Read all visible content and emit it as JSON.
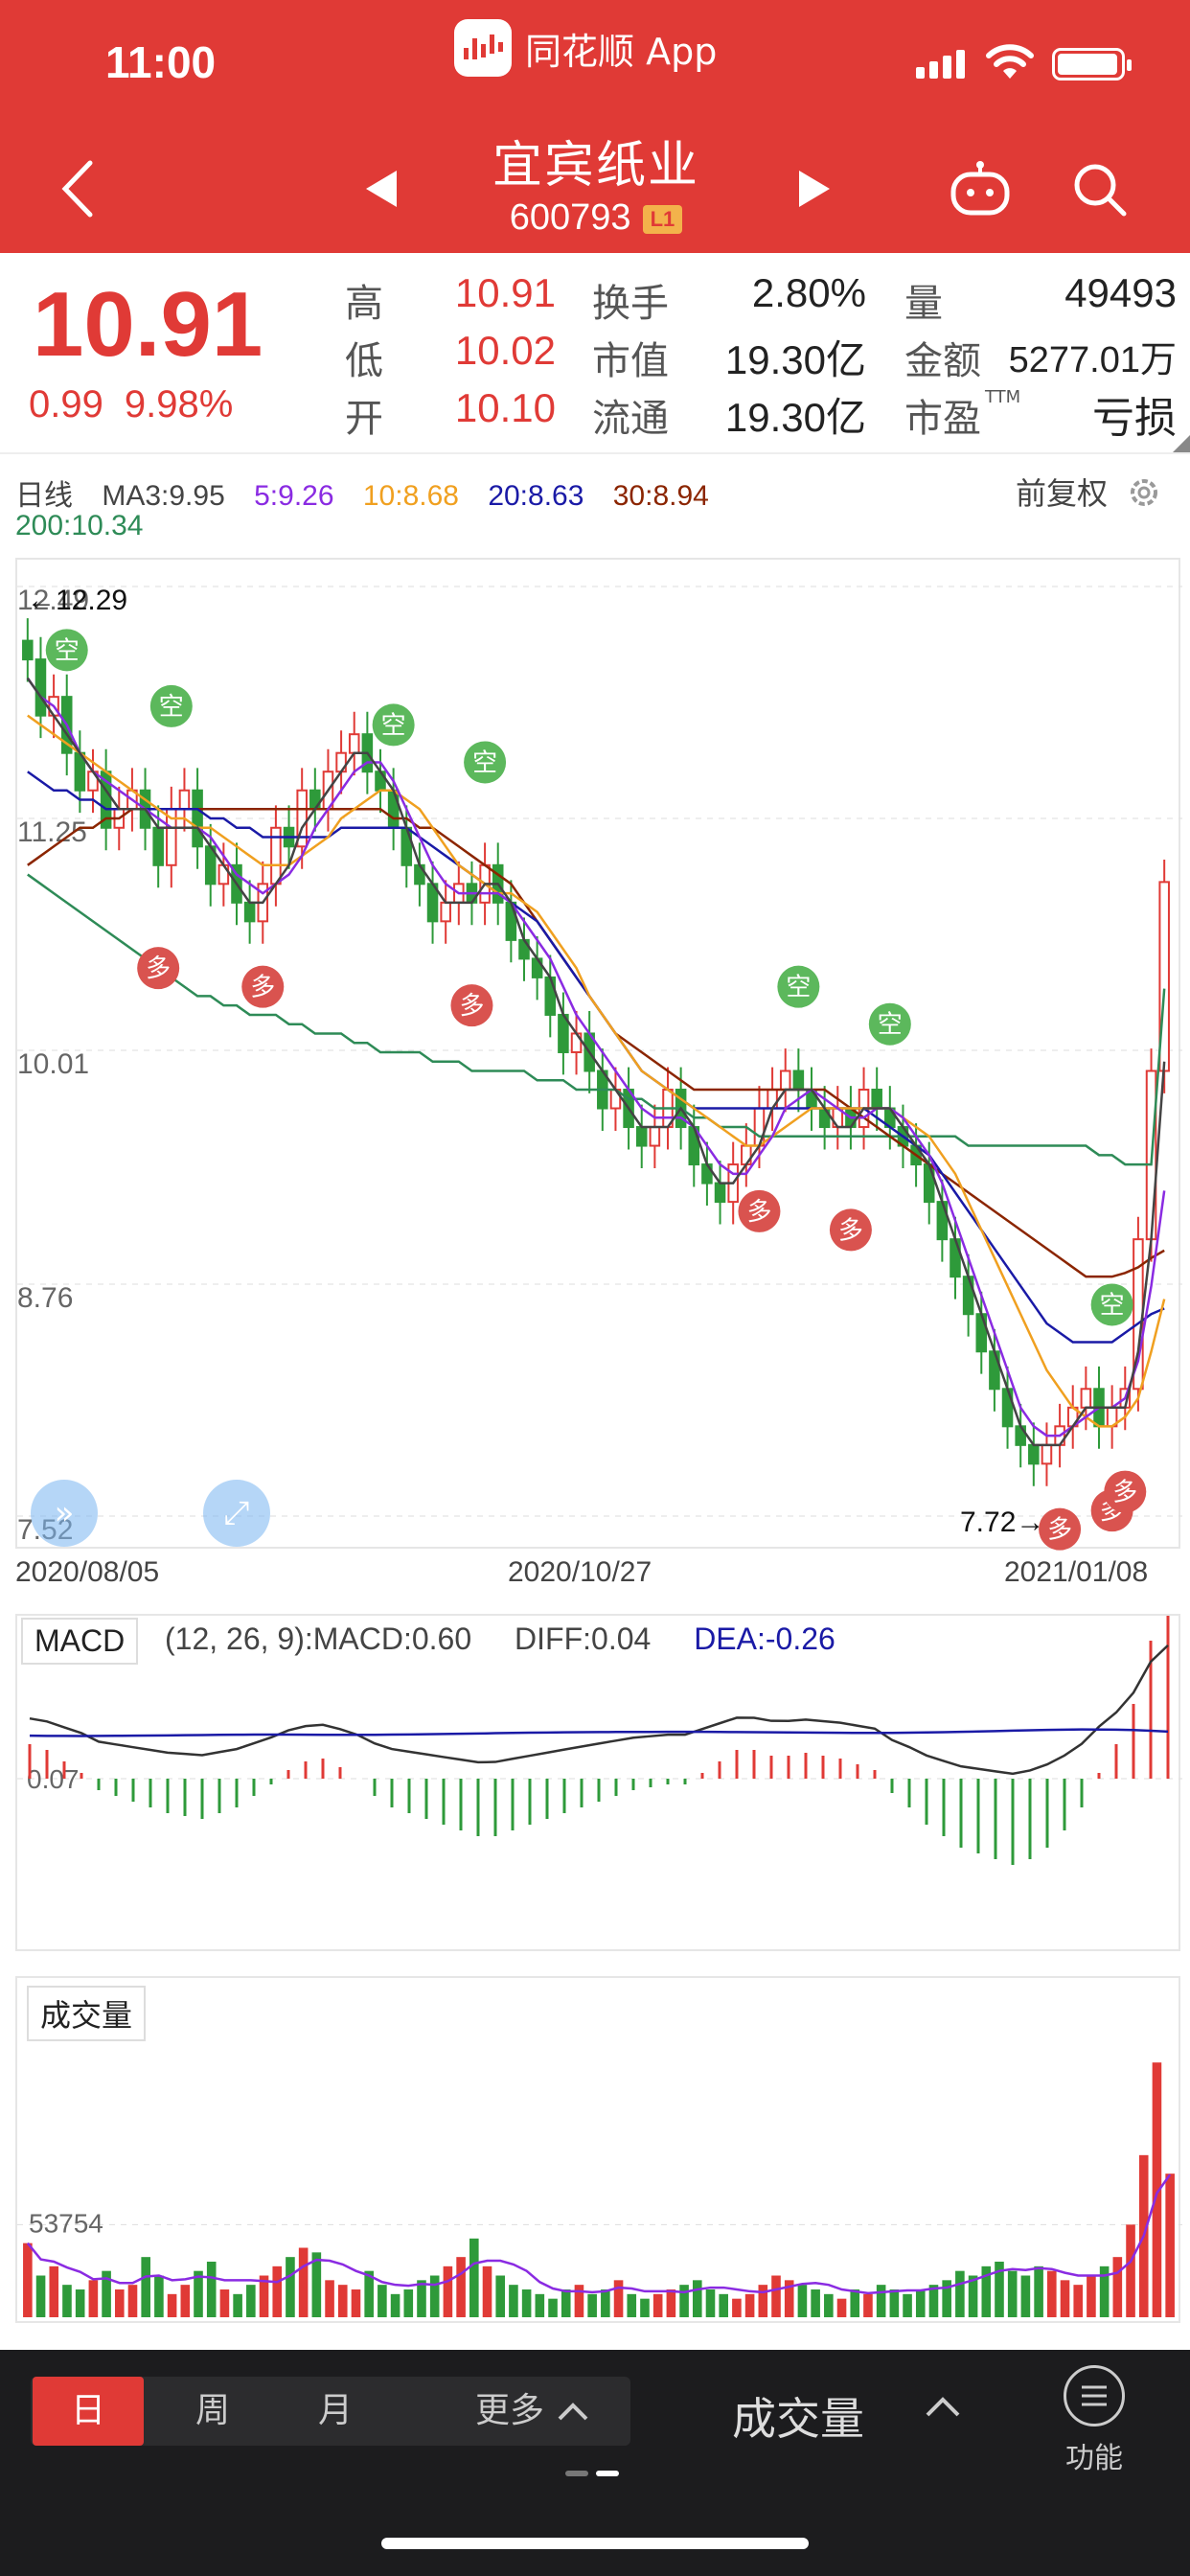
{
  "status_bar": {
    "time": "11:00",
    "app_name": "同花顺 App"
  },
  "header": {
    "stock_name": "宜宾纸业",
    "stock_code": "600793",
    "level": "L1"
  },
  "quote": {
    "price": "10.91",
    "change": "0.99",
    "change_pct": "9.98%",
    "high_label": "高",
    "high": "10.91",
    "low_label": "低",
    "low": "10.02",
    "open_label": "开",
    "open": "10.10",
    "turnover_label": "换手",
    "turnover": "2.80%",
    "mktcap_label": "市值",
    "mktcap": "19.30亿",
    "float_label": "流通",
    "float": "19.30亿",
    "volume_label": "量",
    "volume": "49493",
    "amount_label": "金额",
    "amount": "5277.01万",
    "pe_label": "市盈",
    "pe_sup": "TTM",
    "pe": "亏损"
  },
  "ma_legend": {
    "period": "日线",
    "ma3": "MA3:9.95",
    "ma5": "5:9.26",
    "ma10": "10:8.68",
    "ma20": "20:8.63",
    "ma30": "30:8.94",
    "ma200": "200:10.34",
    "restore": "前复权"
  },
  "colors": {
    "up": "#e03a36",
    "down": "#2e9a3a",
    "ma3": "#444444",
    "ma5": "#8a2be2",
    "ma10": "#f0a020",
    "ma20": "#1a1aa6",
    "ma30": "#8b2500",
    "ma200": "#2e8b57"
  },
  "chart_data": [
    {
      "type": "candlestick",
      "title": "",
      "y_ticks": [
        "12.49",
        "11.25",
        "10.01",
        "8.76",
        "7.52"
      ],
      "ylim": [
        7.52,
        12.49
      ],
      "x_labels": [
        "2020/08/05",
        "2020/10/27",
        "2021/01/08"
      ],
      "max_marker": "←12.29",
      "min_marker": "7.72→",
      "signal_labels": {
        "short": "空",
        "long": "多"
      },
      "signals": [
        {
          "type": "short",
          "index": 3
        },
        {
          "type": "short",
          "index": 11
        },
        {
          "type": "long",
          "index": 10
        },
        {
          "type": "long",
          "index": 18
        },
        {
          "type": "short",
          "index": 28
        },
        {
          "type": "short",
          "index": 35
        },
        {
          "type": "long",
          "index": 34
        },
        {
          "type": "long",
          "index": 56
        },
        {
          "type": "short",
          "index": 59
        },
        {
          "type": "long",
          "index": 63
        },
        {
          "type": "short",
          "index": 66
        },
        {
          "type": "short",
          "index": 83
        },
        {
          "type": "long",
          "index": 79
        },
        {
          "type": "long",
          "index": 83
        },
        {
          "type": "long",
          "index": 84
        }
      ],
      "close": [
        12.1,
        11.8,
        11.9,
        11.6,
        11.4,
        11.5,
        11.2,
        11.3,
        11.4,
        11.2,
        11.0,
        11.3,
        11.4,
        11.1,
        10.9,
        11.0,
        10.8,
        10.7,
        10.9,
        11.2,
        11.1,
        11.4,
        11.3,
        11.5,
        11.6,
        11.7,
        11.5,
        11.4,
        11.2,
        11.0,
        10.9,
        10.7,
        10.8,
        10.9,
        10.8,
        11.0,
        10.8,
        10.6,
        10.5,
        10.4,
        10.2,
        10.0,
        10.1,
        9.9,
        9.7,
        9.8,
        9.6,
        9.5,
        9.6,
        9.8,
        9.6,
        9.4,
        9.3,
        9.2,
        9.4,
        9.5,
        9.7,
        9.8,
        9.9,
        9.8,
        9.7,
        9.6,
        9.7,
        9.6,
        9.8,
        9.7,
        9.6,
        9.5,
        9.4,
        9.2,
        9.0,
        8.8,
        8.6,
        8.4,
        8.2,
        8.0,
        7.9,
        7.8,
        7.9,
        8.0,
        8.1,
        8.2,
        8.0,
        8.1,
        8.2,
        9.0,
        9.9,
        10.91
      ],
      "ma3": [
        12.0,
        11.9,
        11.8,
        11.7,
        11.6,
        11.5,
        11.4,
        11.3,
        11.3,
        11.3,
        11.2,
        11.2,
        11.2,
        11.2,
        11.1,
        11.0,
        10.9,
        10.8,
        10.8,
        10.9,
        11.0,
        11.2,
        11.3,
        11.4,
        11.5,
        11.6,
        11.6,
        11.5,
        11.4,
        11.2,
        11.0,
        10.9,
        10.8,
        10.8,
        10.8,
        10.9,
        10.9,
        10.8,
        10.6,
        10.5,
        10.4,
        10.2,
        10.1,
        10.0,
        9.9,
        9.8,
        9.7,
        9.6,
        9.6,
        9.6,
        9.7,
        9.6,
        9.4,
        9.3,
        9.3,
        9.4,
        9.5,
        9.7,
        9.8,
        9.8,
        9.8,
        9.7,
        9.6,
        9.6,
        9.7,
        9.7,
        9.7,
        9.6,
        9.5,
        9.4,
        9.2,
        9.0,
        8.8,
        8.6,
        8.4,
        8.2,
        8.0,
        7.9,
        7.9,
        7.9,
        8.0,
        8.1,
        8.1,
        8.1,
        8.1,
        8.4,
        9.0,
        9.95
      ],
      "ma5": [
        12.0,
        11.9,
        11.85,
        11.75,
        11.6,
        11.5,
        11.45,
        11.4,
        11.35,
        11.3,
        11.25,
        11.2,
        11.2,
        11.2,
        11.15,
        11.05,
        10.95,
        10.9,
        10.85,
        10.9,
        10.95,
        11.05,
        11.2,
        11.3,
        11.4,
        11.5,
        11.55,
        11.55,
        11.45,
        11.3,
        11.15,
        11.0,
        10.9,
        10.85,
        10.85,
        10.85,
        10.85,
        10.8,
        10.7,
        10.6,
        10.5,
        10.35,
        10.2,
        10.1,
        10.0,
        9.9,
        9.8,
        9.7,
        9.65,
        9.65,
        9.65,
        9.6,
        9.5,
        9.4,
        9.35,
        9.35,
        9.45,
        9.55,
        9.7,
        9.75,
        9.8,
        9.75,
        9.7,
        9.65,
        9.65,
        9.7,
        9.7,
        9.65,
        9.55,
        9.45,
        9.3,
        9.1,
        8.9,
        8.7,
        8.5,
        8.3,
        8.1,
        8.0,
        7.95,
        7.95,
        8.0,
        8.05,
        8.1,
        8.1,
        8.15,
        8.35,
        8.75,
        9.26
      ],
      "ma10": [
        11.8,
        11.75,
        11.7,
        11.65,
        11.6,
        11.55,
        11.5,
        11.45,
        11.4,
        11.35,
        11.3,
        11.25,
        11.25,
        11.2,
        11.2,
        11.15,
        11.1,
        11.05,
        11.0,
        11.0,
        11.0,
        11.05,
        11.1,
        11.15,
        11.25,
        11.3,
        11.35,
        11.4,
        11.4,
        11.35,
        11.3,
        11.2,
        11.1,
        11.0,
        10.95,
        10.9,
        10.85,
        10.85,
        10.8,
        10.75,
        10.65,
        10.55,
        10.45,
        10.3,
        10.2,
        10.1,
        10.0,
        9.9,
        9.85,
        9.8,
        9.75,
        9.7,
        9.65,
        9.6,
        9.55,
        9.5,
        9.5,
        9.55,
        9.6,
        9.65,
        9.7,
        9.7,
        9.7,
        9.7,
        9.7,
        9.7,
        9.7,
        9.65,
        9.6,
        9.55,
        9.45,
        9.35,
        9.2,
        9.05,
        8.9,
        8.75,
        8.6,
        8.45,
        8.3,
        8.2,
        8.1,
        8.05,
        8.0,
        8.0,
        8.05,
        8.15,
        8.4,
        8.68
      ],
      "ma20": [
        11.5,
        11.45,
        11.4,
        11.4,
        11.35,
        11.35,
        11.3,
        11.3,
        11.3,
        11.3,
        11.3,
        11.3,
        11.3,
        11.3,
        11.25,
        11.25,
        11.2,
        11.2,
        11.15,
        11.15,
        11.15,
        11.15,
        11.15,
        11.15,
        11.2,
        11.2,
        11.2,
        11.2,
        11.2,
        11.2,
        11.15,
        11.1,
        11.05,
        11.0,
        10.95,
        10.9,
        10.85,
        10.8,
        10.75,
        10.7,
        10.6,
        10.5,
        10.4,
        10.3,
        10.2,
        10.1,
        10.0,
        9.9,
        9.85,
        9.8,
        9.75,
        9.7,
        9.7,
        9.7,
        9.7,
        9.7,
        9.7,
        9.7,
        9.7,
        9.7,
        9.7,
        9.7,
        9.7,
        9.7,
        9.7,
        9.65,
        9.6,
        9.55,
        9.5,
        9.45,
        9.35,
        9.25,
        9.15,
        9.05,
        8.95,
        8.85,
        8.75,
        8.65,
        8.55,
        8.5,
        8.45,
        8.45,
        8.45,
        8.45,
        8.5,
        8.55,
        8.6,
        8.63
      ],
      "ma30": [
        11.0,
        11.05,
        11.1,
        11.15,
        11.2,
        11.2,
        11.25,
        11.25,
        11.3,
        11.3,
        11.3,
        11.3,
        11.3,
        11.3,
        11.3,
        11.3,
        11.3,
        11.3,
        11.3,
        11.3,
        11.3,
        11.3,
        11.3,
        11.3,
        11.3,
        11.3,
        11.3,
        11.3,
        11.25,
        11.25,
        11.2,
        11.2,
        11.15,
        11.1,
        11.05,
        11.0,
        10.95,
        10.9,
        10.8,
        10.7,
        10.6,
        10.5,
        10.4,
        10.3,
        10.2,
        10.1,
        10.05,
        10.0,
        9.95,
        9.9,
        9.85,
        9.8,
        9.8,
        9.8,
        9.8,
        9.8,
        9.8,
        9.8,
        9.8,
        9.8,
        9.8,
        9.8,
        9.75,
        9.7,
        9.65,
        9.6,
        9.55,
        9.5,
        9.45,
        9.4,
        9.35,
        9.3,
        9.25,
        9.2,
        9.15,
        9.1,
        9.05,
        9.0,
        8.95,
        8.9,
        8.85,
        8.8,
        8.8,
        8.8,
        8.82,
        8.85,
        8.9,
        8.94
      ],
      "ma200": [
        10.95,
        10.9,
        10.85,
        10.8,
        10.75,
        10.7,
        10.65,
        10.6,
        10.55,
        10.5,
        10.45,
        10.4,
        10.35,
        10.3,
        10.3,
        10.25,
        10.25,
        10.2,
        10.2,
        10.2,
        10.15,
        10.15,
        10.1,
        10.1,
        10.1,
        10.05,
        10.05,
        10.0,
        10.0,
        10.0,
        10.0,
        9.95,
        9.95,
        9.95,
        9.9,
        9.9,
        9.9,
        9.9,
        9.9,
        9.85,
        9.85,
        9.85,
        9.8,
        9.8,
        9.8,
        9.8,
        9.75,
        9.75,
        9.7,
        9.7,
        9.7,
        9.65,
        9.65,
        9.6,
        9.6,
        9.6,
        9.55,
        9.55,
        9.55,
        9.55,
        9.55,
        9.55,
        9.55,
        9.55,
        9.55,
        9.55,
        9.55,
        9.55,
        9.55,
        9.55,
        9.55,
        9.55,
        9.5,
        9.5,
        9.5,
        9.5,
        9.5,
        9.5,
        9.5,
        9.5,
        9.5,
        9.5,
        9.45,
        9.45,
        9.4,
        9.4,
        9.4,
        10.34
      ]
    },
    {
      "type": "macd",
      "title": "MACD",
      "params": "(12, 26, 9):MACD:0.60",
      "diff": "DIFF:0.04",
      "dea": "DEA:-0.26",
      "zero_label": "0.07",
      "hist": [
        0.12,
        0.1,
        0.06,
        0.02,
        -0.04,
        -0.06,
        -0.08,
        -0.1,
        -0.12,
        -0.13,
        -0.14,
        -0.12,
        -0.1,
        -0.06,
        -0.02,
        0.03,
        0.06,
        0.07,
        0.04,
        0.0,
        -0.06,
        -0.1,
        -0.12,
        -0.14,
        -0.16,
        -0.18,
        -0.2,
        -0.2,
        -0.18,
        -0.16,
        -0.14,
        -0.12,
        -0.1,
        -0.08,
        -0.06,
        -0.04,
        -0.03,
        -0.02,
        -0.02,
        0.02,
        0.06,
        0.1,
        0.1,
        0.08,
        0.08,
        0.09,
        0.08,
        0.07,
        0.05,
        0.03,
        -0.05,
        -0.1,
        -0.16,
        -0.2,
        -0.24,
        -0.26,
        -0.28,
        -0.3,
        -0.28,
        -0.24,
        -0.18,
        -0.1,
        0.02,
        0.12,
        0.26,
        0.48,
        0.6
      ]
    },
    {
      "type": "bar",
      "title": "成交量",
      "ref_label": "53754",
      "values": [
        32,
        18,
        22,
        14,
        12,
        16,
        20,
        12,
        14,
        26,
        18,
        10,
        14,
        20,
        24,
        12,
        10,
        14,
        18,
        22,
        26,
        30,
        28,
        16,
        14,
        12,
        20,
        14,
        10,
        12,
        16,
        18,
        22,
        26,
        34,
        22,
        18,
        14,
        12,
        10,
        8,
        12,
        14,
        10,
        12,
        16,
        10,
        8,
        10,
        12,
        14,
        16,
        12,
        10,
        8,
        10,
        14,
        18,
        16,
        14,
        12,
        10,
        8,
        12,
        10,
        14,
        12,
        10,
        12,
        14,
        16,
        20,
        18,
        22,
        24,
        20,
        18,
        22,
        20,
        16,
        14,
        18,
        22,
        26,
        40,
        70,
        110,
        62
      ]
    }
  ],
  "toolbar": {
    "periods": [
      "日",
      "周",
      "月",
      "更多"
    ],
    "indicator": "成交量",
    "function_label": "功能"
  }
}
